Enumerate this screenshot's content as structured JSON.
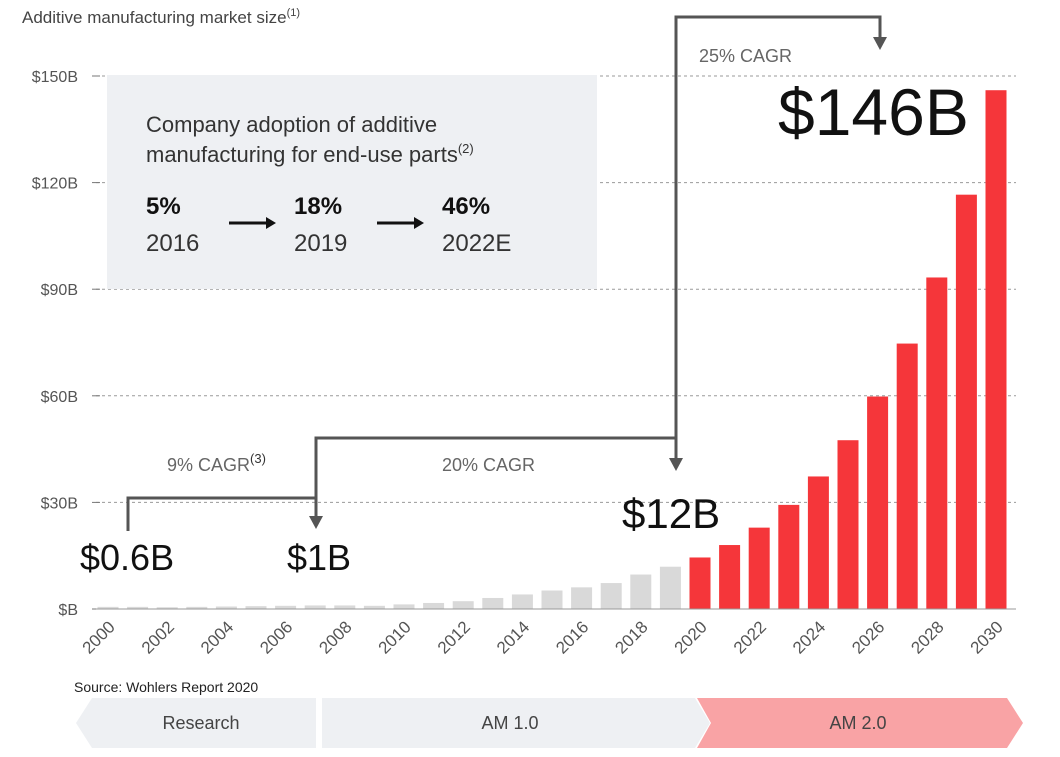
{
  "title": "Additive manufacturing market size",
  "title_note": "(1)",
  "source": "Source: Wohlers Report 2020",
  "chart_data": {
    "type": "bar",
    "ylim": [
      0,
      150
    ],
    "yticks": [
      {
        "value": 0,
        "label": "$B"
      },
      {
        "value": 30,
        "label": "$30B"
      },
      {
        "value": 60,
        "label": "$60B"
      },
      {
        "value": 90,
        "label": "$90B"
      },
      {
        "value": 120,
        "label": "$120B"
      },
      {
        "value": 150,
        "label": "$150B"
      }
    ],
    "xtick_labels": [
      "2000",
      "2002",
      "2004",
      "2006",
      "2008",
      "2010",
      "2012",
      "2014",
      "2016",
      "2018",
      "2020",
      "2022",
      "2024",
      "2026",
      "2028",
      "2030"
    ],
    "categories": [
      "2000",
      "2001",
      "2002",
      "2003",
      "2004",
      "2005",
      "2006",
      "2007",
      "2008",
      "2009",
      "2010",
      "2011",
      "2012",
      "2013",
      "2014",
      "2015",
      "2016",
      "2017",
      "2018",
      "2019",
      "2020",
      "2021",
      "2022",
      "2023",
      "2024",
      "2025",
      "2026",
      "2027",
      "2028",
      "2029",
      "2030"
    ],
    "values": [
      0.6,
      0.6,
      0.5,
      0.6,
      0.7,
      0.8,
      0.9,
      1.0,
      1.0,
      0.9,
      1.3,
      1.7,
      2.2,
      3.1,
      4.1,
      5.2,
      6.1,
      7.3,
      9.7,
      11.9,
      14.5,
      18.0,
      22.9,
      29.3,
      37.3,
      47.5,
      59.8,
      74.7,
      93.3,
      116.6,
      146.0
    ],
    "series_colors": {
      "historical": "#d9d9d9",
      "forecast": "#f5363a"
    },
    "forecast_from": "2020",
    "grid": true,
    "annotations": {
      "cagr_1": {
        "label": "9% CAGR",
        "note": "(3)"
      },
      "cagr_2": {
        "label": "20% CAGR"
      },
      "cagr_3": {
        "label": "25% CAGR"
      },
      "value_2000": "$0.6B",
      "value_2007": "$1B",
      "value_2019": "$12B",
      "value_2030": "$146B"
    }
  },
  "inset": {
    "line1": "Company adoption of additive",
    "line2": "manufacturing for end-use parts",
    "note": "(2)",
    "steps": [
      {
        "pct": "5%",
        "year": "2016"
      },
      {
        "pct": "18%",
        "year": "2019"
      },
      {
        "pct": "46%",
        "year": "2022E"
      }
    ]
  },
  "phases": [
    {
      "label": "Research",
      "color": "#eef0f3"
    },
    {
      "label": "AM 1.0",
      "color": "#eef0f3"
    },
    {
      "label": "AM 2.0",
      "color": "#f9a3a5"
    }
  ]
}
